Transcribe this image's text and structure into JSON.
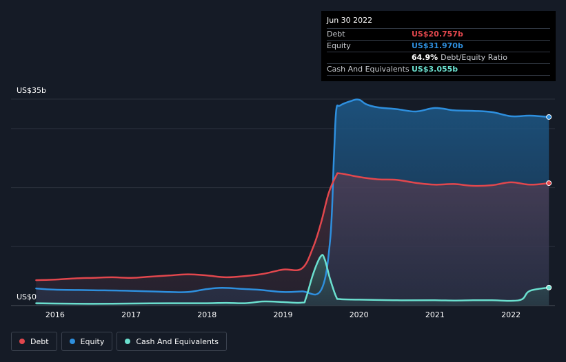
{
  "chart_data": {
    "type": "area",
    "y_axis": {
      "top_label": "US$35b",
      "bottom_label": "US$0",
      "ylim": [
        0,
        35
      ]
    },
    "x_ticks": [
      "2016",
      "2017",
      "2018",
      "2019",
      "2020",
      "2021",
      "2022"
    ],
    "x_tick_values": [
      2016.0,
      2017.0,
      2018.0,
      2019.0,
      2020.0,
      2021.0,
      2022.0
    ],
    "xlim": [
      2015.42,
      2022.58
    ],
    "grid": true,
    "legend_position": "bottom-left",
    "series": [
      {
        "name": "Equity",
        "color": "#2e8fde",
        "x": [
          2015.75,
          2016.0,
          2016.5,
          2017.0,
          2017.5,
          2017.75,
          2018.0,
          2018.2,
          2018.5,
          2018.75,
          2019.0,
          2019.25,
          2019.5,
          2019.62,
          2019.67,
          2019.7,
          2019.75,
          2019.9,
          2020.0,
          2020.1,
          2020.25,
          2020.5,
          2020.75,
          2021.0,
          2021.25,
          2021.5,
          2021.75,
          2022.0,
          2022.25,
          2022.5
        ],
        "values": [
          2.9,
          2.7,
          2.6,
          2.5,
          2.3,
          2.3,
          2.8,
          3.0,
          2.8,
          2.6,
          2.3,
          2.4,
          2.6,
          11.0,
          25.0,
          33.0,
          33.9,
          34.7,
          34.9,
          34.1,
          33.6,
          33.3,
          32.9,
          33.5,
          33.1,
          33.0,
          32.8,
          32.1,
          32.2,
          31.97
        ]
      },
      {
        "name": "Debt",
        "color": "#e2474d",
        "x": [
          2015.75,
          2016.0,
          2016.25,
          2016.5,
          2016.75,
          2017.0,
          2017.25,
          2017.5,
          2017.75,
          2018.0,
          2018.25,
          2018.5,
          2018.75,
          2019.0,
          2019.25,
          2019.4,
          2019.5,
          2019.6,
          2019.7,
          2019.75,
          2020.0,
          2020.25,
          2020.5,
          2020.75,
          2021.0,
          2021.25,
          2021.5,
          2021.75,
          2022.0,
          2022.25,
          2022.5
        ],
        "values": [
          4.3,
          4.4,
          4.6,
          4.7,
          4.8,
          4.7,
          4.9,
          5.1,
          5.3,
          5.1,
          4.8,
          5.0,
          5.4,
          6.1,
          6.3,
          10.0,
          14.0,
          19.0,
          22.0,
          22.4,
          21.8,
          21.4,
          21.3,
          20.8,
          20.5,
          20.6,
          20.3,
          20.4,
          20.9,
          20.5,
          20.757
        ]
      },
      {
        "name": "Cash And Equivalents",
        "color": "#6be0cf",
        "x": [
          2015.75,
          2016.0,
          2016.5,
          2017.0,
          2017.5,
          2018.0,
          2018.25,
          2018.5,
          2018.75,
          2019.0,
          2019.25,
          2019.3,
          2019.4,
          2019.5,
          2019.55,
          2019.62,
          2019.7,
          2019.75,
          2020.0,
          2020.5,
          2021.0,
          2021.25,
          2021.5,
          2021.75,
          2022.0,
          2022.15,
          2022.25,
          2022.5
        ],
        "values": [
          0.4,
          0.35,
          0.3,
          0.35,
          0.4,
          0.4,
          0.45,
          0.4,
          0.7,
          0.6,
          0.5,
          1.2,
          5.5,
          8.4,
          7.8,
          4.5,
          1.5,
          1.1,
          1.0,
          0.9,
          0.9,
          0.85,
          0.9,
          0.9,
          0.8,
          1.1,
          2.5,
          3.055
        ]
      }
    ]
  },
  "tooltip": {
    "date": "Jun 30 2022",
    "rows": [
      {
        "label": "Debt",
        "value": "US$20.757b",
        "color": "#e2474d"
      },
      {
        "label": "Equity",
        "value": "US$31.970b",
        "color": "#2e8fde"
      },
      {
        "label": "",
        "value": "64.9%",
        "extra": "Debt/Equity Ratio",
        "color": "#ffffff"
      },
      {
        "label": "Cash And Equivalents",
        "value": "US$3.055b",
        "color": "#6be0cf"
      }
    ]
  },
  "legend": [
    {
      "label": "Debt",
      "color": "#e2474d"
    },
    {
      "label": "Equity",
      "color": "#2e8fde"
    },
    {
      "label": "Cash And Equivalents",
      "color": "#6be0cf"
    }
  ]
}
